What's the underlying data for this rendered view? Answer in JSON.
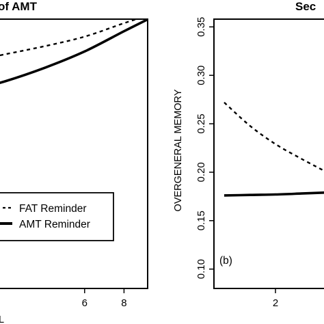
{
  "chart_data": [
    {
      "type": "line",
      "panel": "left",
      "title": "of AMT",
      "xlabel": "L",
      "x_ticks": [
        "6",
        "8"
      ],
      "xlim": [
        1.6,
        9.2
      ],
      "ylim": [
        0.0,
        1.0
      ],
      "legend": {
        "placement": "lower-right",
        "entries": [
          {
            "label": "FAT Reminder",
            "style": "dashed"
          },
          {
            "label": "AMT Reminder",
            "style": "solid"
          }
        ]
      },
      "series": [
        {
          "name": "FAT Reminder",
          "style": "dashed",
          "x": [
            0,
            2,
            4,
            6,
            8,
            9.5
          ],
          "y": [
            0.84,
            0.87,
            0.9,
            0.935,
            0.985,
            1.02
          ]
        },
        {
          "name": "AMT Reminder",
          "style": "solid",
          "x": [
            0,
            2,
            4,
            6,
            8,
            9.5
          ],
          "y": [
            0.73,
            0.77,
            0.82,
            0.88,
            0.955,
            1.01
          ]
        }
      ]
    },
    {
      "type": "line",
      "panel": "right",
      "title": "Sec",
      "ylabel": "OVERGENERAL MEMORY",
      "x_ticks": [
        "2"
      ],
      "xlim": [
        0.8,
        3.2
      ],
      "ylim": [
        0.08,
        0.358
      ],
      "y_ticks": [
        "0.10",
        "0.15",
        "0.20",
        "0.25",
        "0.30",
        "0.35"
      ],
      "annotation": "(b)",
      "series": [
        {
          "name": "FAT Reminder",
          "style": "dashed",
          "x": [
            1,
            1.5,
            2,
            2.5,
            3
          ],
          "y": [
            0.272,
            0.248,
            0.229,
            0.214,
            0.2
          ]
        },
        {
          "name": "AMT Reminder",
          "style": "solid",
          "x": [
            1,
            1.5,
            2,
            2.5,
            3
          ],
          "y": [
            0.176,
            0.1765,
            0.177,
            0.178,
            0.179
          ]
        }
      ]
    }
  ]
}
